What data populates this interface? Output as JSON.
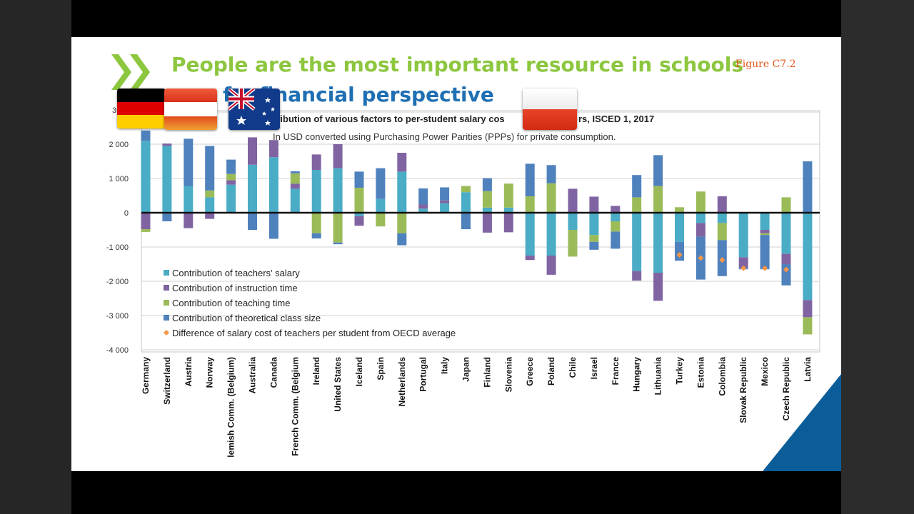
{
  "slide": {
    "title_line1": "People are the most important resource in schools",
    "title_line2": "a financial perspective",
    "title_line2_prefix": "f",
    "figure_label": "Figure C7.2",
    "flags": [
      "germany-flag",
      "austria-flag",
      "australia-flag",
      "poland-flag"
    ],
    "colors": {
      "title_green": "#8dc63f",
      "title_blue": "#1f6fb3",
      "figure_orange": "#e2571e",
      "corner_blue": "#0a5d99"
    }
  },
  "chart_data": {
    "type": "bar",
    "stacked": true,
    "title": "tribution of various factors to per-student salary cos",
    "title_suffix": "rs, ISCED 1, 2017",
    "subtitle": "In USD converted using Purchasing Power Parities (PPPs) for private consumption.",
    "ylim": [
      -4000,
      3000
    ],
    "yticks": [
      "-4 000",
      "-3 000",
      "-2 000",
      "-1 000",
      "0",
      "1 000",
      "2 000"
    ],
    "ytick_values": [
      -4000,
      -3000,
      -2000,
      -1000,
      0,
      1000,
      2000
    ],
    "top_tick_partial": "3",
    "grid": true,
    "legend_position": "bottom-left",
    "categories": [
      "Germany",
      "Switzerland",
      "Austria",
      "Norway",
      "lemish Comm. (Belgium)",
      "Australia",
      "Canada",
      "French Comm. (Belgium",
      "Ireland",
      "United States",
      "Iceland",
      "Spain",
      "Netherlands",
      "Portugal",
      "Italy",
      "Japan",
      "Finland",
      "Slovenia",
      "Greece",
      "Poland",
      "Chile",
      "Israel",
      "France",
      "Hungary",
      "Lithuania",
      "Turkey",
      "Estonia",
      "Colombia",
      "Slovak Republic",
      "Mexico",
      "Czech Republic",
      "Latvia"
    ],
    "series": [
      {
        "name": "Contribution of teachers' salary",
        "color": "#4bacc6",
        "values": [
          2100,
          1950,
          780,
          450,
          820,
          1400,
          1620,
          700,
          1250,
          1300,
          -100,
          400,
          1200,
          120,
          280,
          600,
          150,
          150,
          -1250,
          -1250,
          -500,
          -650,
          -250,
          -1700,
          -1750,
          -850,
          -300,
          -300,
          -1300,
          -500,
          -1200,
          -2550
        ]
      },
      {
        "name": "Contribution of instruction time",
        "color": "#8064a2",
        "values": [
          -480,
          70,
          -450,
          -180,
          130,
          800,
          500,
          150,
          450,
          700,
          -280,
          0,
          550,
          120,
          80,
          0,
          -580,
          -570,
          -130,
          -560,
          700,
          470,
          200,
          -280,
          -820,
          0,
          -400,
          480,
          -310,
          -100,
          -300,
          -500
        ]
      },
      {
        "name": "Contribution of teaching time",
        "color": "#9bbb59",
        "values": [
          -80,
          0,
          0,
          200,
          180,
          0,
          0,
          300,
          -600,
          -870,
          730,
          -400,
          -600,
          0,
          0,
          180,
          480,
          700,
          480,
          860,
          -780,
          -200,
          -300,
          450,
          780,
          160,
          620,
          -500,
          0,
          -50,
          450,
          -500
        ]
      },
      {
        "name": "Contribution of theoretical class size",
        "color": "#4f81bd",
        "values": [
          300,
          -250,
          1380,
          1300,
          420,
          -500,
          -760,
          60,
          -150,
          -50,
          470,
          900,
          -350,
          470,
          380,
          -480,
          380,
          0,
          950,
          530,
          0,
          -230,
          -500,
          650,
          900,
          -550,
          -1250,
          -1050,
          -40,
          -1000,
          -620,
          1500
        ]
      }
    ],
    "difference_from_oecd": {
      "name": "Difference of salary cost of teachers per student from OECD average",
      "color": "#f79646",
      "points": [
        {
          "category": "Turkey",
          "value": -1230
        },
        {
          "category": "Estonia",
          "value": -1320
        },
        {
          "category": "Colombia",
          "value": -1380
        },
        {
          "category": "Slovak Republic",
          "value": -1620
        },
        {
          "category": "Mexico",
          "value": -1620
        },
        {
          "category": "Czech Republic",
          "value": -1660
        }
      ]
    }
  }
}
